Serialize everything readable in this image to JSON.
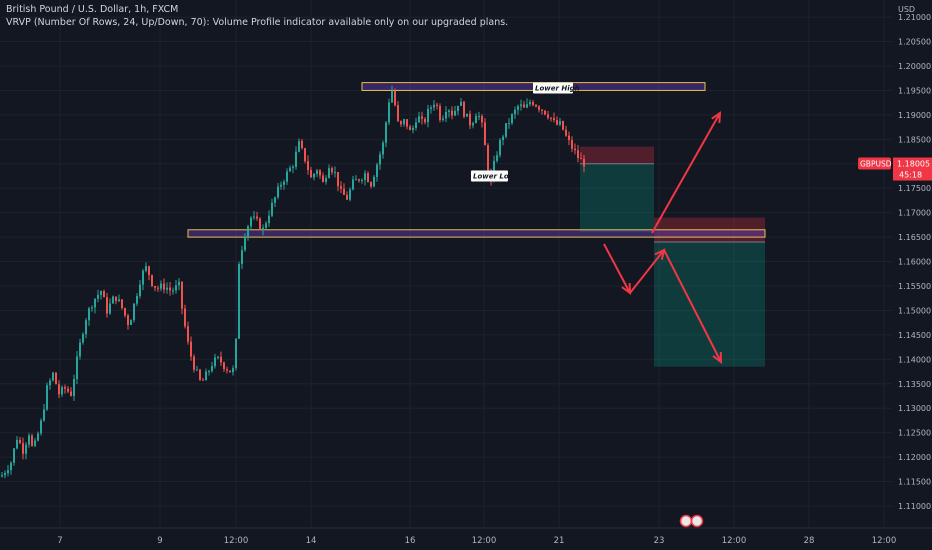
{
  "header": {
    "title": "British Pound / U.S. Dollar, 1h, FXCM",
    "indicator": "VRVP (Number Of Rows, 24, Up/Down, 70): Volume Profile indicator available only on our upgraded plans."
  },
  "chart_data": {
    "type": "candlestick",
    "symbol": "GBPUSD",
    "currency_label": "USD",
    "current_price": "1.18005",
    "countdown": "45:18",
    "ylim": [
      1.1055,
      1.2135
    ],
    "y_ticks": [
      "1.21000",
      "1.20500",
      "1.20000",
      "1.19500",
      "1.19000",
      "1.18500",
      "1.18000",
      "1.17500",
      "1.17000",
      "1.16500",
      "1.16000",
      "1.15500",
      "1.15000",
      "1.14500",
      "1.14000",
      "1.13500",
      "1.13000",
      "1.12500",
      "1.12000",
      "1.11500",
      "1.11000"
    ],
    "x_ticks": [
      "7",
      "9",
      "12:00",
      "14",
      "16",
      "12:00",
      "21",
      "23",
      "12:00",
      "28",
      "12:00"
    ],
    "price_path": [
      [
        0,
        1.116
      ],
      [
        10,
        1.119
      ],
      [
        16,
        1.124
      ],
      [
        22,
        1.1215
      ],
      [
        28,
        1.125
      ],
      [
        32,
        1.121
      ],
      [
        40,
        1.127
      ],
      [
        46,
        1.134
      ],
      [
        52,
        1.137
      ],
      [
        58,
        1.133
      ],
      [
        64,
        1.134
      ],
      [
        70,
        1.133
      ],
      [
        78,
        1.142
      ],
      [
        84,
        1.148
      ],
      [
        92,
        1.152
      ],
      [
        100,
        1.154
      ],
      [
        106,
        1.15
      ],
      [
        114,
        1.153
      ],
      [
        120,
        1.151
      ],
      [
        128,
        1.147
      ],
      [
        134,
        1.152
      ],
      [
        140,
        1.157
      ],
      [
        146,
        1.159
      ],
      [
        150,
        1.156
      ],
      [
        156,
        1.1545
      ],
      [
        164,
        1.155
      ],
      [
        170,
        1.154
      ],
      [
        178,
        1.155
      ],
      [
        182,
        1.149
      ],
      [
        188,
        1.142
      ],
      [
        194,
        1.138
      ],
      [
        200,
        1.135
      ],
      [
        206,
        1.137
      ],
      [
        212,
        1.1395
      ],
      [
        218,
        1.14
      ],
      [
        224,
        1.1385
      ],
      [
        230,
        1.1375
      ],
      [
        234,
        1.138
      ],
      [
        238,
        1.16
      ],
      [
        244,
        1.166
      ],
      [
        250,
        1.169
      ],
      [
        256,
        1.168
      ],
      [
        262,
        1.1665
      ],
      [
        268,
        1.17
      ],
      [
        274,
        1.173
      ],
      [
        280,
        1.176
      ],
      [
        286,
        1.178
      ],
      [
        292,
        1.18
      ],
      [
        298,
        1.184
      ],
      [
        304,
        1.181
      ],
      [
        310,
        1.177
      ],
      [
        316,
        1.179
      ],
      [
        322,
        1.176
      ],
      [
        328,
        1.18
      ],
      [
        334,
        1.178
      ],
      [
        340,
        1.174
      ],
      [
        346,
        1.173
      ],
      [
        352,
        1.176
      ],
      [
        358,
        1.177
      ],
      [
        364,
        1.178
      ],
      [
        370,
        1.176
      ],
      [
        376,
        1.18
      ],
      [
        382,
        1.184
      ],
      [
        386,
        1.19
      ],
      [
        390,
        1.196
      ],
      [
        394,
        1.192
      ],
      [
        398,
        1.187
      ],
      [
        404,
        1.189
      ],
      [
        410,
        1.186
      ],
      [
        416,
        1.19
      ],
      [
        422,
        1.188
      ],
      [
        428,
        1.191
      ],
      [
        434,
        1.193
      ],
      [
        440,
        1.189
      ],
      [
        446,
        1.192
      ],
      [
        452,
        1.19
      ],
      [
        458,
        1.193
      ],
      [
        464,
        1.19
      ],
      [
        470,
        1.188
      ],
      [
        476,
        1.191
      ],
      [
        482,
        1.187
      ],
      [
        486,
        1.18
      ],
      [
        490,
        1.176
      ],
      [
        494,
        1.181
      ],
      [
        500,
        1.185
      ],
      [
        506,
        1.188
      ],
      [
        512,
        1.19
      ],
      [
        518,
        1.192
      ],
      [
        524,
        1.191
      ],
      [
        530,
        1.193
      ],
      [
        536,
        1.192
      ],
      [
        542,
        1.191
      ],
      [
        548,
        1.19
      ],
      [
        554,
        1.188
      ],
      [
        560,
        1.188
      ],
      [
        566,
        1.185
      ],
      [
        572,
        1.183
      ],
      [
        578,
        1.181
      ],
      [
        584,
        1.18
      ]
    ],
    "zones": [
      {
        "name": "upper-resistance-zone",
        "y_top": 1.1966,
        "y_bottom": 1.195
      },
      {
        "name": "support-zone",
        "y_top": 1.1665,
        "y_bottom": 1.165
      }
    ],
    "annotations": [
      {
        "text": "Lower High",
        "price": 1.195
      },
      {
        "text": "Lower Low",
        "price": 1.177
      }
    ],
    "positions": [
      {
        "type": "short",
        "entry": 1.18,
        "stop": 1.1835,
        "target": 1.166
      },
      {
        "type": "short",
        "entry": 1.164,
        "stop": 1.169,
        "target": 1.1385
      }
    ]
  }
}
